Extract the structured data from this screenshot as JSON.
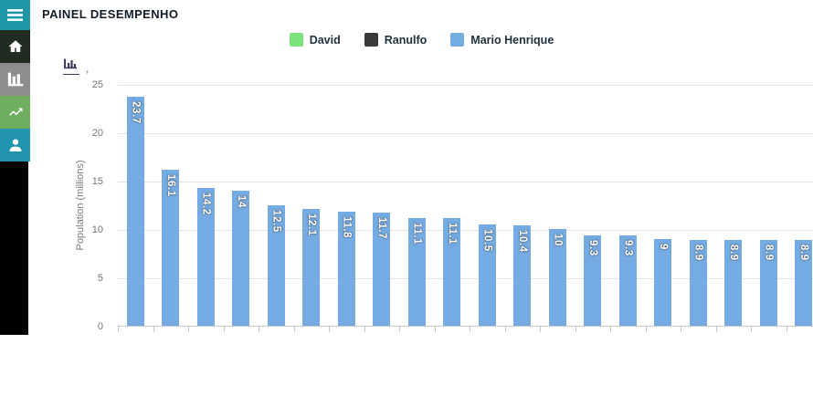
{
  "app": {
    "title": "PAINEL DESEMPENHO"
  },
  "sidebar": {
    "background": "#000000",
    "items": [
      {
        "name": "menu",
        "icon": "menu-icon",
        "color": "#1f95a8"
      },
      {
        "name": "home",
        "icon": "home-icon",
        "color": "#202b21"
      },
      {
        "name": "charts",
        "icon": "bar-chart-icon",
        "color": "#8d8d8d"
      },
      {
        "name": "trends",
        "icon": "trend-up-icon",
        "color": "#6fae5f"
      },
      {
        "name": "users",
        "icon": "user-icon",
        "color": "#2095ad"
      }
    ]
  },
  "toolbar": {
    "chart_type_icon": "bar-chart-icon",
    "comma": ","
  },
  "legend": [
    {
      "label": "David",
      "color": "#7de47d"
    },
    {
      "label": "Ranulfo",
      "color": "#3a3a3a"
    },
    {
      "label": "Mario Henrique",
      "color": "#74ace0"
    }
  ],
  "chart_data": {
    "type": "bar",
    "title": "",
    "xlabel": "",
    "ylabel": "Population (millions)",
    "ylim": [
      0,
      25
    ],
    "yticks": [
      0,
      5,
      10,
      15,
      20,
      25
    ],
    "grid": "horizontal",
    "legend_position": "top",
    "x_tick_labels_visible": false,
    "bar_color": "#73abe2",
    "series": [
      {
        "name": "Mario Henrique",
        "color": "#73abe2",
        "values": [
          23.7,
          16.1,
          14.2,
          14,
          12.5,
          12.1,
          11.8,
          11.7,
          11.1,
          11.1,
          10.5,
          10.4,
          10,
          9.3,
          9.3,
          9,
          8.9,
          8.9,
          8.9,
          8.9
        ]
      }
    ]
  }
}
